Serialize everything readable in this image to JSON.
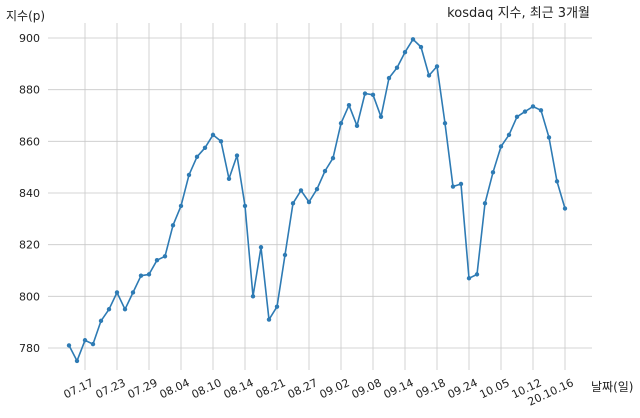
{
  "chart_data": {
    "type": "line",
    "title": "kosdaq 지수, 최근 3개월",
    "ylabel": "지수(p)",
    "xlabel": "날짜(일)",
    "ylim": [
      770,
      905
    ],
    "yticks": [
      780,
      800,
      820,
      840,
      860,
      880,
      900
    ],
    "x_tick_labels": [
      "07.17",
      "07.23",
      "07.29",
      "08.04",
      "08.10",
      "08.14",
      "08.21",
      "08.27",
      "09.02",
      "09.08",
      "09.14",
      "09.18",
      "09.24",
      "10.05",
      "10.12",
      "20.10.16"
    ],
    "x_tick_positions": [
      2,
      6,
      10,
      14,
      18,
      22,
      26,
      30,
      34,
      38,
      42,
      46,
      50,
      54,
      58,
      62
    ],
    "grid": true,
    "color": "#2e7bb4",
    "series": [
      {
        "x": [
          0,
          1,
          2,
          3,
          4,
          5,
          6,
          7,
          8,
          9,
          10,
          11,
          12,
          13,
          14,
          15,
          16,
          17,
          18,
          19,
          20,
          21,
          22,
          23,
          24,
          25,
          26,
          27,
          28,
          29,
          30,
          31,
          32,
          33,
          34,
          35,
          36,
          37,
          38,
          39,
          40,
          41,
          42,
          43,
          44,
          45,
          46,
          47,
          48,
          49,
          50,
          51,
          52,
          53,
          54,
          55,
          56,
          57,
          58,
          59,
          60,
          61,
          62
        ],
        "values": [
          781,
          775,
          783,
          781.5,
          790.5,
          795,
          801.5,
          795,
          801.5,
          808,
          808.5,
          814,
          815.5,
          827.5,
          835,
          847,
          854,
          857.5,
          862.5,
          860,
          845.5,
          854.5,
          835,
          800,
          819,
          791,
          796,
          816,
          836,
          841,
          836.5,
          841.5,
          848.5,
          853.5,
          867,
          874,
          866,
          878.5,
          878,
          869.5,
          884.5,
          888.5,
          894.5,
          899.5,
          896.5,
          885.5,
          889,
          867,
          842.5,
          843.5,
          807,
          808.5,
          836,
          848,
          858,
          862.5,
          869.5,
          871.5,
          873.5,
          872,
          861.5,
          844.5,
          834
        ]
      }
    ]
  }
}
